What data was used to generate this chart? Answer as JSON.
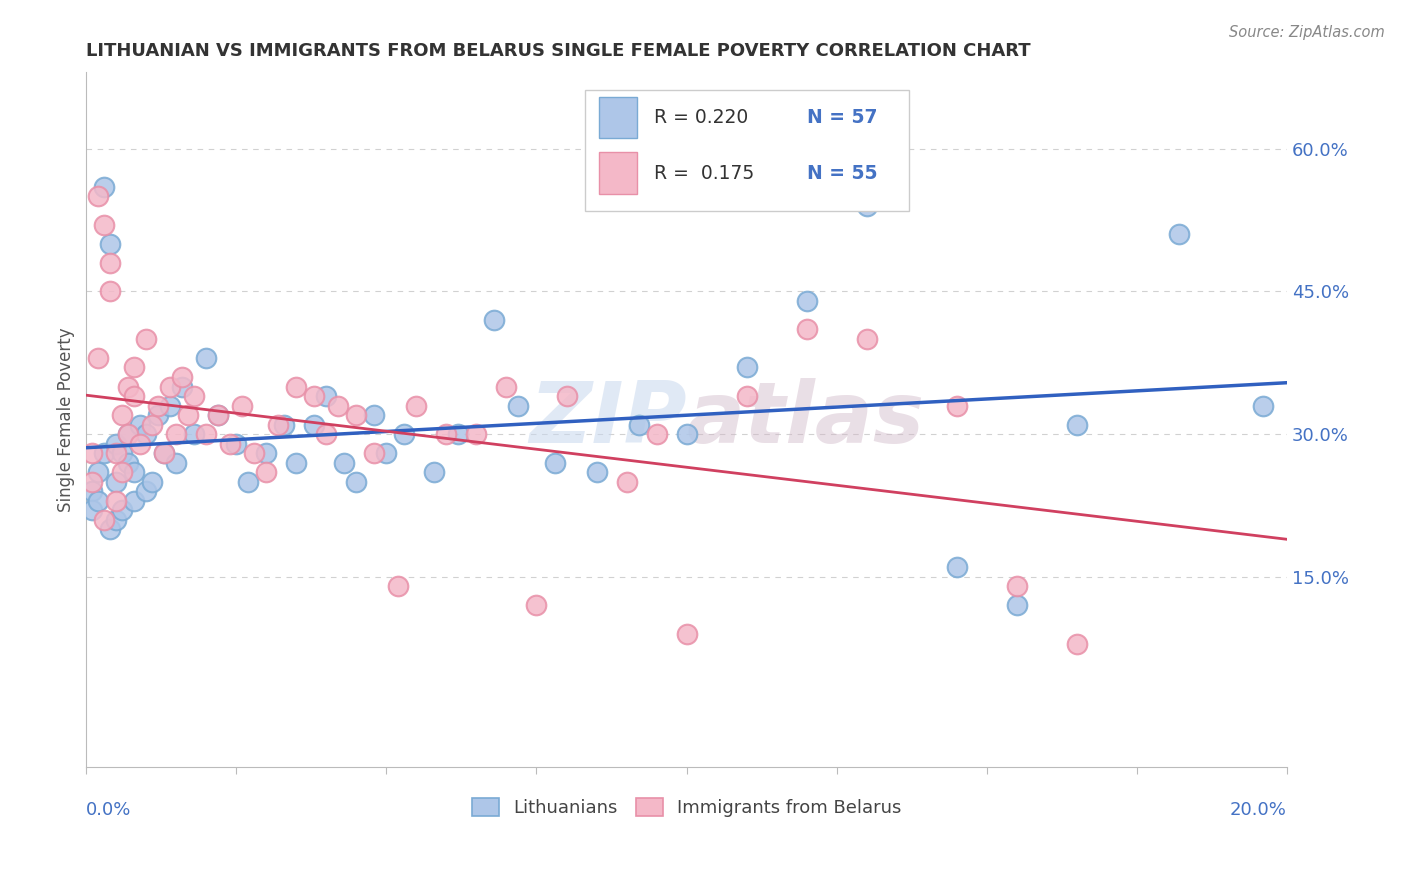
{
  "title": "LITHUANIAN VS IMMIGRANTS FROM BELARUS SINGLE FEMALE POVERTY CORRELATION CHART",
  "source": "Source: ZipAtlas.com",
  "ylabel": "Single Female Poverty",
  "watermark_zip": "ZIP",
  "watermark_atlas": "atlas",
  "xlim": [
    0.0,
    0.2
  ],
  "ylim": [
    -0.05,
    0.68
  ],
  "yticks": [
    0.15,
    0.3,
    0.45,
    0.6
  ],
  "ytick_labels": [
    "15.0%",
    "30.0%",
    "45.0%",
    "60.0%"
  ],
  "legend_r1": "R = 0.220",
  "legend_n1": "N = 57",
  "legend_r2": "R =  0.175",
  "legend_n2": "N = 55",
  "blue_fill": "#aec6e8",
  "pink_fill": "#f4b8c8",
  "blue_edge": "#7aaad4",
  "pink_edge": "#e890a8",
  "blue_line_color": "#3060c0",
  "pink_line_color": "#d04060",
  "tick_label_color": "#4472c4",
  "title_color": "#333333",
  "axis_color": "#bbbbbb",
  "grid_color": "#cccccc",
  "blue_scatter_x": [
    0.001,
    0.001,
    0.002,
    0.002,
    0.003,
    0.003,
    0.004,
    0.004,
    0.005,
    0.005,
    0.005,
    0.006,
    0.006,
    0.007,
    0.007,
    0.008,
    0.008,
    0.009,
    0.01,
    0.01,
    0.011,
    0.012,
    0.013,
    0.014,
    0.015,
    0.016,
    0.018,
    0.02,
    0.022,
    0.025,
    0.027,
    0.03,
    0.033,
    0.035,
    0.038,
    0.04,
    0.043,
    0.045,
    0.048,
    0.05,
    0.053,
    0.058,
    0.062,
    0.068,
    0.072,
    0.078,
    0.085,
    0.092,
    0.1,
    0.11,
    0.12,
    0.13,
    0.145,
    0.155,
    0.165,
    0.182,
    0.196
  ],
  "blue_scatter_y": [
    0.24,
    0.22,
    0.26,
    0.23,
    0.56,
    0.28,
    0.2,
    0.5,
    0.21,
    0.25,
    0.29,
    0.22,
    0.28,
    0.3,
    0.27,
    0.26,
    0.23,
    0.31,
    0.3,
    0.24,
    0.25,
    0.32,
    0.28,
    0.33,
    0.27,
    0.35,
    0.3,
    0.38,
    0.32,
    0.29,
    0.25,
    0.28,
    0.31,
    0.27,
    0.31,
    0.34,
    0.27,
    0.25,
    0.32,
    0.28,
    0.3,
    0.26,
    0.3,
    0.42,
    0.33,
    0.27,
    0.26,
    0.31,
    0.3,
    0.37,
    0.44,
    0.54,
    0.16,
    0.12,
    0.31,
    0.51,
    0.33
  ],
  "pink_scatter_x": [
    0.001,
    0.001,
    0.002,
    0.002,
    0.003,
    0.003,
    0.004,
    0.004,
    0.005,
    0.005,
    0.006,
    0.006,
    0.007,
    0.007,
    0.008,
    0.008,
    0.009,
    0.01,
    0.011,
    0.012,
    0.013,
    0.014,
    0.015,
    0.016,
    0.017,
    0.018,
    0.02,
    0.022,
    0.024,
    0.026,
    0.028,
    0.03,
    0.032,
    0.035,
    0.038,
    0.04,
    0.042,
    0.045,
    0.048,
    0.052,
    0.055,
    0.06,
    0.065,
    0.07,
    0.075,
    0.08,
    0.09,
    0.095,
    0.1,
    0.11,
    0.12,
    0.13,
    0.145,
    0.155,
    0.165
  ],
  "pink_scatter_y": [
    0.28,
    0.25,
    0.38,
    0.55,
    0.52,
    0.21,
    0.48,
    0.45,
    0.23,
    0.28,
    0.26,
    0.32,
    0.35,
    0.3,
    0.37,
    0.34,
    0.29,
    0.4,
    0.31,
    0.33,
    0.28,
    0.35,
    0.3,
    0.36,
    0.32,
    0.34,
    0.3,
    0.32,
    0.29,
    0.33,
    0.28,
    0.26,
    0.31,
    0.35,
    0.34,
    0.3,
    0.33,
    0.32,
    0.28,
    0.14,
    0.33,
    0.3,
    0.3,
    0.35,
    0.12,
    0.34,
    0.25,
    0.3,
    0.09,
    0.34,
    0.41,
    0.4,
    0.33,
    0.14,
    0.08
  ]
}
